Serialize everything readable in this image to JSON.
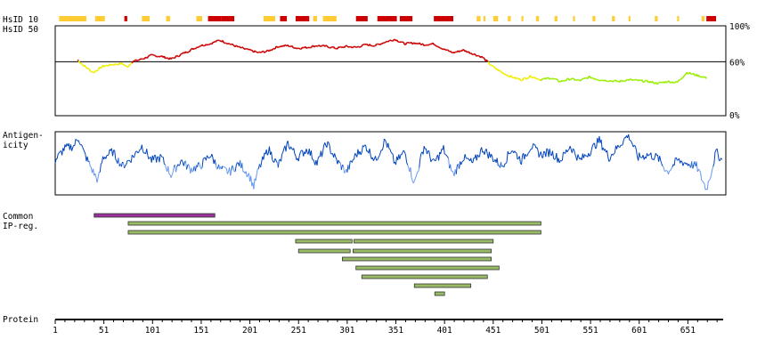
{
  "labels": {
    "hsid10": "HsID 10",
    "hsid50": "HsID 50",
    "antigenicity_1": "Antigen-",
    "antigenicity_2": "icity",
    "common_1": "Common",
    "common_2": "IP-reg.",
    "protein": "Protein"
  },
  "colors": {
    "high": "#cc0000",
    "mid": "#ffcc33",
    "low": "#ccff00",
    "yellow": "#eeee00",
    "green": "#99ee00",
    "antigen_dark": "#0044bb",
    "antigen_light": "#6699ee",
    "purple": "#993399",
    "green_bar": "#99bb66"
  },
  "chart_data": [
    {
      "type": "line",
      "title": "HsID 50",
      "ylim": [
        0,
        100
      ],
      "y_ticks": [
        "100%",
        "60%",
        "0%"
      ],
      "threshold": 60,
      "x": [
        24,
        30,
        40,
        50,
        60,
        70,
        75,
        80,
        90,
        100,
        110,
        120,
        130,
        140,
        150,
        160,
        170,
        180,
        190,
        200,
        210,
        220,
        230,
        240,
        250,
        260,
        270,
        280,
        290,
        300,
        310,
        320,
        330,
        340,
        350,
        360,
        370,
        380,
        390,
        400,
        410,
        420,
        430,
        440,
        445,
        450,
        460,
        470,
        480,
        490,
        500,
        510,
        520,
        530,
        540,
        550,
        560,
        570,
        580,
        590,
        600,
        610,
        620,
        630,
        640,
        650,
        660,
        670
      ],
      "values": [
        62,
        56,
        48,
        55,
        57,
        58,
        54,
        60,
        63,
        67,
        66,
        63,
        68,
        73,
        78,
        80,
        84,
        80,
        76,
        73,
        70,
        72,
        77,
        78,
        75,
        76,
        78,
        77,
        75,
        77,
        76,
        79,
        78,
        82,
        85,
        80,
        81,
        79,
        80,
        74,
        70,
        73,
        69,
        65,
        60,
        55,
        48,
        43,
        40,
        44,
        40,
        42,
        38,
        41,
        39,
        43,
        40,
        39,
        38,
        40,
        39,
        38,
        36,
        38,
        37,
        48,
        45,
        42
      ]
    },
    {
      "type": "line",
      "title": "Antigenicity",
      "x": [
        1,
        10,
        20,
        25,
        30,
        40,
        45,
        50,
        60,
        70,
        80,
        90,
        100,
        110,
        120,
        130,
        140,
        150,
        160,
        170,
        180,
        190,
        200,
        205,
        210,
        220,
        230,
        240,
        250,
        260,
        270,
        280,
        290,
        300,
        310,
        320,
        330,
        340,
        350,
        360,
        370,
        380,
        390,
        400,
        410,
        420,
        430,
        440,
        450,
        460,
        470,
        480,
        490,
        500,
        510,
        520,
        530,
        540,
        550,
        560,
        570,
        580,
        590,
        600,
        610,
        620,
        630,
        640,
        650,
        660,
        670,
        675,
        680,
        686
      ],
      "values": [
        0.55,
        0.75,
        0.8,
        0.95,
        0.7,
        0.35,
        0.2,
        0.6,
        0.7,
        0.45,
        0.6,
        0.8,
        0.55,
        0.6,
        0.3,
        0.55,
        0.4,
        0.45,
        0.65,
        0.4,
        0.35,
        0.5,
        0.3,
        0.1,
        0.4,
        0.75,
        0.45,
        0.85,
        0.6,
        0.75,
        0.5,
        0.85,
        0.55,
        0.35,
        0.65,
        0.8,
        0.55,
        0.9,
        0.5,
        0.7,
        0.15,
        0.8,
        0.5,
        0.75,
        0.3,
        0.6,
        0.5,
        0.75,
        0.6,
        0.45,
        0.75,
        0.55,
        0.8,
        0.65,
        0.7,
        0.55,
        0.8,
        0.55,
        0.7,
        0.9,
        0.6,
        0.8,
        1.0,
        0.6,
        0.65,
        0.6,
        0.35,
        0.55,
        0.5,
        0.45,
        0.05,
        0.35,
        0.7,
        0.55
      ]
    },
    {
      "type": "heatmap",
      "title": "HsID 10",
      "segments": [
        {
          "start": 5,
          "end": 33,
          "level": "mid"
        },
        {
          "start": 42,
          "end": 52,
          "level": "mid"
        },
        {
          "start": 72,
          "end": 75,
          "level": "high"
        },
        {
          "start": 90,
          "end": 98,
          "level": "mid"
        },
        {
          "start": 115,
          "end": 119,
          "level": "mid"
        },
        {
          "start": 146,
          "end": 152,
          "level": "mid"
        },
        {
          "start": 158,
          "end": 172,
          "level": "high"
        },
        {
          "start": 172,
          "end": 185,
          "level": "high"
        },
        {
          "start": 215,
          "end": 227,
          "level": "mid"
        },
        {
          "start": 232,
          "end": 239,
          "level": "high"
        },
        {
          "start": 248,
          "end": 262,
          "level": "high"
        },
        {
          "start": 266,
          "end": 270,
          "level": "mid"
        },
        {
          "start": 276,
          "end": 290,
          "level": "mid"
        },
        {
          "start": 310,
          "end": 322,
          "level": "high"
        },
        {
          "start": 332,
          "end": 352,
          "level": "high"
        },
        {
          "start": 355,
          "end": 368,
          "level": "high"
        },
        {
          "start": 390,
          "end": 410,
          "level": "high"
        },
        {
          "start": 434,
          "end": 438,
          "level": "mid"
        },
        {
          "start": 441,
          "end": 443,
          "level": "mid"
        },
        {
          "start": 451,
          "end": 456,
          "level": "mid"
        },
        {
          "start": 466,
          "end": 469,
          "level": "mid"
        },
        {
          "start": 480,
          "end": 482,
          "level": "mid"
        },
        {
          "start": 495,
          "end": 498,
          "level": "mid"
        },
        {
          "start": 514,
          "end": 517,
          "level": "mid"
        },
        {
          "start": 533,
          "end": 535,
          "level": "mid"
        },
        {
          "start": 553,
          "end": 556,
          "level": "mid"
        },
        {
          "start": 573,
          "end": 576,
          "level": "mid"
        },
        {
          "start": 590,
          "end": 592,
          "level": "mid"
        },
        {
          "start": 617,
          "end": 620,
          "level": "mid"
        },
        {
          "start": 640,
          "end": 642,
          "level": "mid"
        },
        {
          "start": 665,
          "end": 668,
          "level": "mid"
        },
        {
          "start": 670,
          "end": 680,
          "level": "high"
        }
      ]
    },
    {
      "type": "bar",
      "title": "Common IP-reg.",
      "ranges": [
        {
          "start": 41,
          "end": 165,
          "kind": "purple"
        },
        {
          "start": 76,
          "end": 500,
          "kind": "green"
        },
        {
          "start": 76,
          "end": 500,
          "kind": "green"
        },
        {
          "start": 248,
          "end": 306,
          "kind": "green"
        },
        {
          "start": 308,
          "end": 451,
          "kind": "green"
        },
        {
          "start": 251,
          "end": 304,
          "kind": "green"
        },
        {
          "start": 307,
          "end": 449,
          "kind": "green"
        },
        {
          "start": 296,
          "end": 449,
          "kind": "green"
        },
        {
          "start": 310,
          "end": 457,
          "kind": "green"
        },
        {
          "start": 316,
          "end": 445,
          "kind": "green"
        },
        {
          "start": 370,
          "end": 428,
          "kind": "green"
        },
        {
          "start": 391,
          "end": 401,
          "kind": "green"
        }
      ]
    },
    {
      "type": "line",
      "title": "Protein",
      "xlim": [
        1,
        690
      ],
      "x_ticks": [
        1,
        51,
        101,
        151,
        201,
        251,
        301,
        351,
        401,
        451,
        501,
        551,
        601,
        651
      ]
    }
  ]
}
